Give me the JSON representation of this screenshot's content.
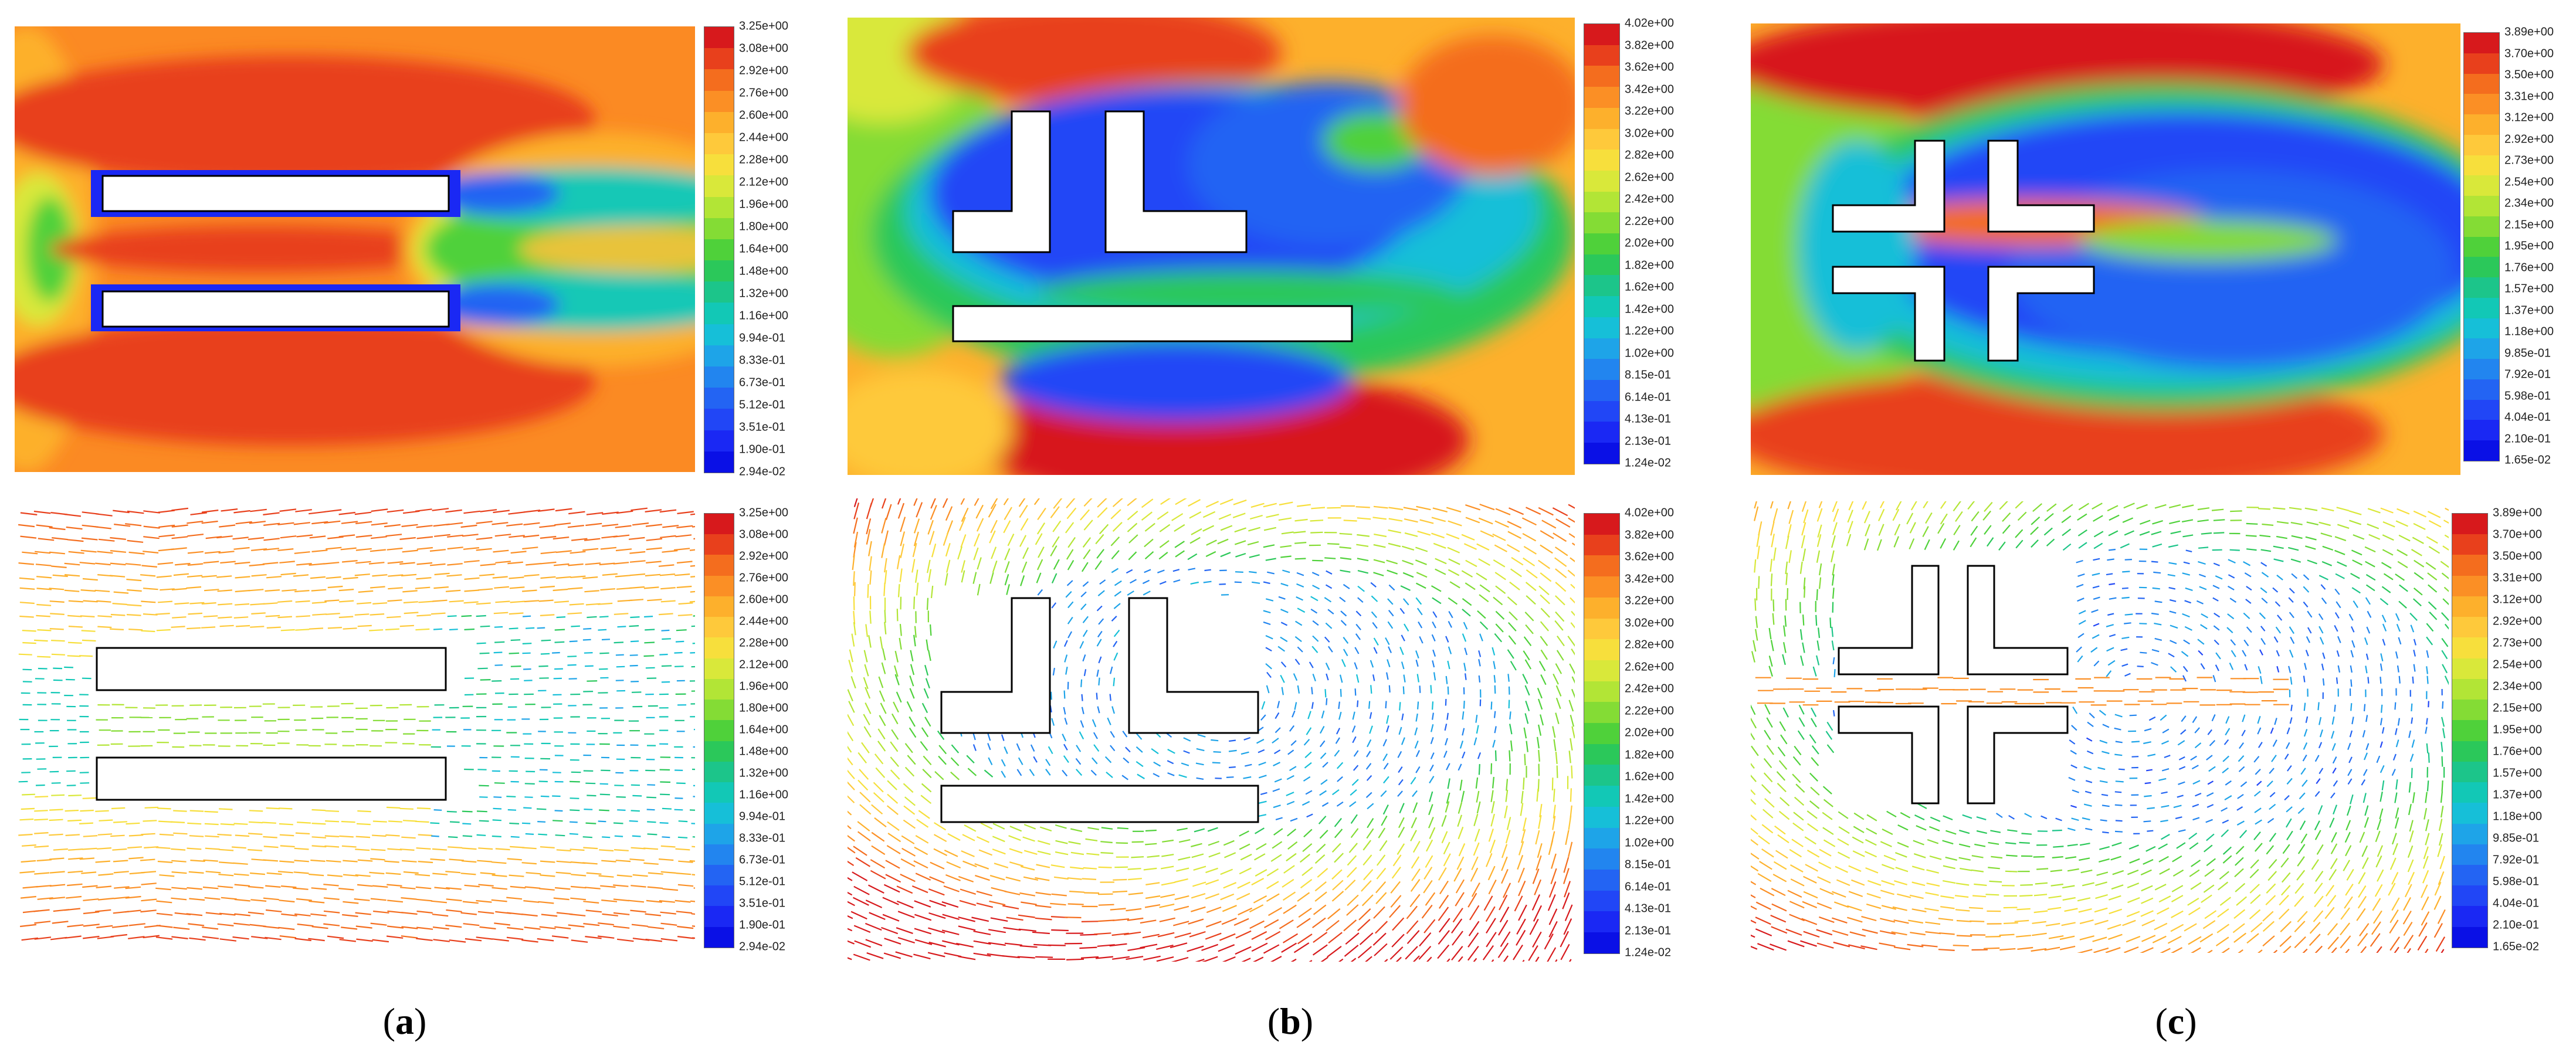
{
  "panels": [
    {
      "caption": "a",
      "colorbar_top": [
        "3.25e+00",
        "3.08e+00",
        "2.92e+00",
        "2.76e+00",
        "2.60e+00",
        "2.44e+00",
        "2.28e+00",
        "2.12e+00",
        "1.96e+00",
        "1.80e+00",
        "1.64e+00",
        "1.48e+00",
        "1.32e+00",
        "1.16e+00",
        "9.94e-01",
        "8.33e-01",
        "6.73e-01",
        "5.12e-01",
        "3.51e-01",
        "1.90e-01",
        "2.94e-02"
      ],
      "colorbar_bottom": [
        "3.25e+00",
        "3.08e+00",
        "2.92e+00",
        "2.76e+00",
        "2.60e+00",
        "2.44e+00",
        "2.28e+00",
        "2.12e+00",
        "1.96e+00",
        "1.80e+00",
        "1.64e+00",
        "1.48e+00",
        "1.32e+00",
        "1.16e+00",
        "9.94e-01",
        "8.33e-01",
        "6.73e-01",
        "5.12e-01",
        "3.51e-01",
        "1.90e-01",
        "2.94e-02"
      ]
    },
    {
      "caption": "b",
      "colorbar_top": [
        "4.02e+00",
        "3.82e+00",
        "3.62e+00",
        "3.42e+00",
        "3.22e+00",
        "3.02e+00",
        "2.82e+00",
        "2.62e+00",
        "2.42e+00",
        "2.22e+00",
        "2.02e+00",
        "1.82e+00",
        "1.62e+00",
        "1.42e+00",
        "1.22e+00",
        "1.02e+00",
        "8.15e-01",
        "6.14e-01",
        "4.13e-01",
        "2.13e-01",
        "1.24e-02"
      ],
      "colorbar_bottom": [
        "4.02e+00",
        "3.82e+00",
        "3.62e+00",
        "3.42e+00",
        "3.22e+00",
        "3.02e+00",
        "2.82e+00",
        "2.62e+00",
        "2.42e+00",
        "2.22e+00",
        "2.02e+00",
        "1.82e+00",
        "1.62e+00",
        "1.42e+00",
        "1.22e+00",
        "1.02e+00",
        "8.15e-01",
        "6.14e-01",
        "4.13e-01",
        "2.13e-01",
        "1.24e-02"
      ]
    },
    {
      "caption": "c",
      "colorbar_top": [
        "3.89e+00",
        "3.70e+00",
        "3.50e+00",
        "3.31e+00",
        "3.12e+00",
        "2.92e+00",
        "2.73e+00",
        "2.54e+00",
        "2.34e+00",
        "2.15e+00",
        "1.95e+00",
        "1.76e+00",
        "1.57e+00",
        "1.37e+00",
        "1.18e+00",
        "9.85e-01",
        "7.92e-01",
        "5.98e-01",
        "4.04e-01",
        "2.10e-01",
        "1.65e-02"
      ],
      "colorbar_bottom": [
        "3.89e+00",
        "3.70e+00",
        "3.50e+00",
        "3.31e+00",
        "3.12e+00",
        "2.92e+00",
        "2.73e+00",
        "2.54e+00",
        "2.34e+00",
        "2.15e+00",
        "1.95e+00",
        "1.76e+00",
        "1.57e+00",
        "1.37e+00",
        "1.18e+00",
        "9.85e-01",
        "7.92e-01",
        "5.98e-01",
        "4.04e-01",
        "2.10e-01",
        "1.65e-02"
      ]
    }
  ],
  "colors": {
    "scale": [
      "#d7191c",
      "#e8401c",
      "#f46d1e",
      "#fb8f25",
      "#fdb02c",
      "#fec93b",
      "#f7df3c",
      "#d9e83a",
      "#b2e536",
      "#84dc35",
      "#4fd13a",
      "#2bc85a",
      "#1cc58a",
      "#12c8b6",
      "#16bfd8",
      "#1ea4e8",
      "#2285ef",
      "#2364f3",
      "#2146f6",
      "#1a28f4",
      "#0a10e6"
    ],
    "obstacle_fill": "#ffffff",
    "obstacle_stroke": "#000000"
  }
}
